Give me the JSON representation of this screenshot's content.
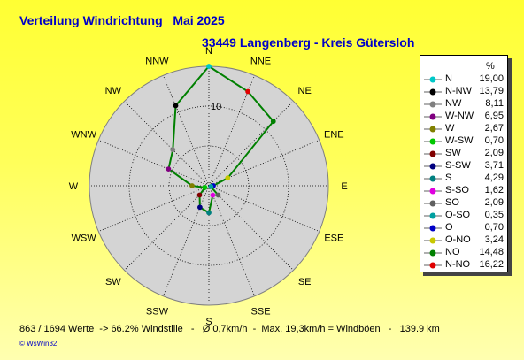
{
  "title": "Verteilung Windrichtung   Mai 2025",
  "subtitle": "33449 Langenberg - Kreis Gütersloh",
  "footer": "863 / 1694 Werte  -> 66.2% Windstille   -   Ø 0,7km/h  -  Max. 19,3km/h = Windböen   -   139.9 km",
  "credit": "© WsWin32",
  "chart_data": {
    "type": "radar",
    "directions": [
      "N",
      "NNE",
      "NE",
      "ENE",
      "E",
      "ESE",
      "SE",
      "SSE",
      "S",
      "SSW",
      "SW",
      "WSW",
      "W",
      "WNW",
      "NW",
      "NNW"
    ],
    "ring_label": "10",
    "radius_max": 19,
    "ring_values": [
      6.33,
      12.67,
      19
    ],
    "legend_unit": "%",
    "legend": [
      {
        "name": "N",
        "value": "19,00",
        "color": "#00c8c8"
      },
      {
        "name": "N-NW",
        "value": "13,79",
        "color": "#000000"
      },
      {
        "name": "NW",
        "value": "8,11",
        "color": "#808080"
      },
      {
        "name": "W-NW",
        "value": "6,95",
        "color": "#800080"
      },
      {
        "name": "W",
        "value": "2,67",
        "color": "#808000"
      },
      {
        "name": "W-SW",
        "value": "0,70",
        "color": "#00c800"
      },
      {
        "name": "SW",
        "value": "2,09",
        "color": "#800000"
      },
      {
        "name": "S-SW",
        "value": "3,71",
        "color": "#000080"
      },
      {
        "name": "S",
        "value": "4,29",
        "color": "#008080"
      },
      {
        "name": "S-SO",
        "value": "1,62",
        "color": "#e000e0"
      },
      {
        "name": "SO",
        "value": "2,09",
        "color": "#606060"
      },
      {
        "name": "O-SO",
        "value": "0,35",
        "color": "#00a0a0"
      },
      {
        "name": "O",
        "value": "0,70",
        "color": "#0000c8"
      },
      {
        "name": "O-NO",
        "value": "3,24",
        "color": "#c8c800"
      },
      {
        "name": "NO",
        "value": "14,48",
        "color": "#008000"
      },
      {
        "name": "N-NO",
        "value": "16,22",
        "color": "#e00000"
      }
    ],
    "values": [
      {
        "dir": "N",
        "value": 19.0
      },
      {
        "dir": "NNE",
        "value": 16.22
      },
      {
        "dir": "NE",
        "value": 14.48
      },
      {
        "dir": "ENE",
        "value": 3.24
      },
      {
        "dir": "E",
        "value": 0.7
      },
      {
        "dir": "ESE",
        "value": 0.35
      },
      {
        "dir": "SE",
        "value": 2.09
      },
      {
        "dir": "SSE",
        "value": 1.62
      },
      {
        "dir": "S",
        "value": 4.29
      },
      {
        "dir": "SSW",
        "value": 3.71
      },
      {
        "dir": "SW",
        "value": 2.09
      },
      {
        "dir": "WSW",
        "value": 0.7
      },
      {
        "dir": "W",
        "value": 2.67
      },
      {
        "dir": "WNW",
        "value": 6.95
      },
      {
        "dir": "NW",
        "value": 8.11
      },
      {
        "dir": "NNW",
        "value": 13.79
      }
    ],
    "series_color": "#008000",
    "grid_color": "#000000",
    "area_color": "#d4d4d4"
  }
}
